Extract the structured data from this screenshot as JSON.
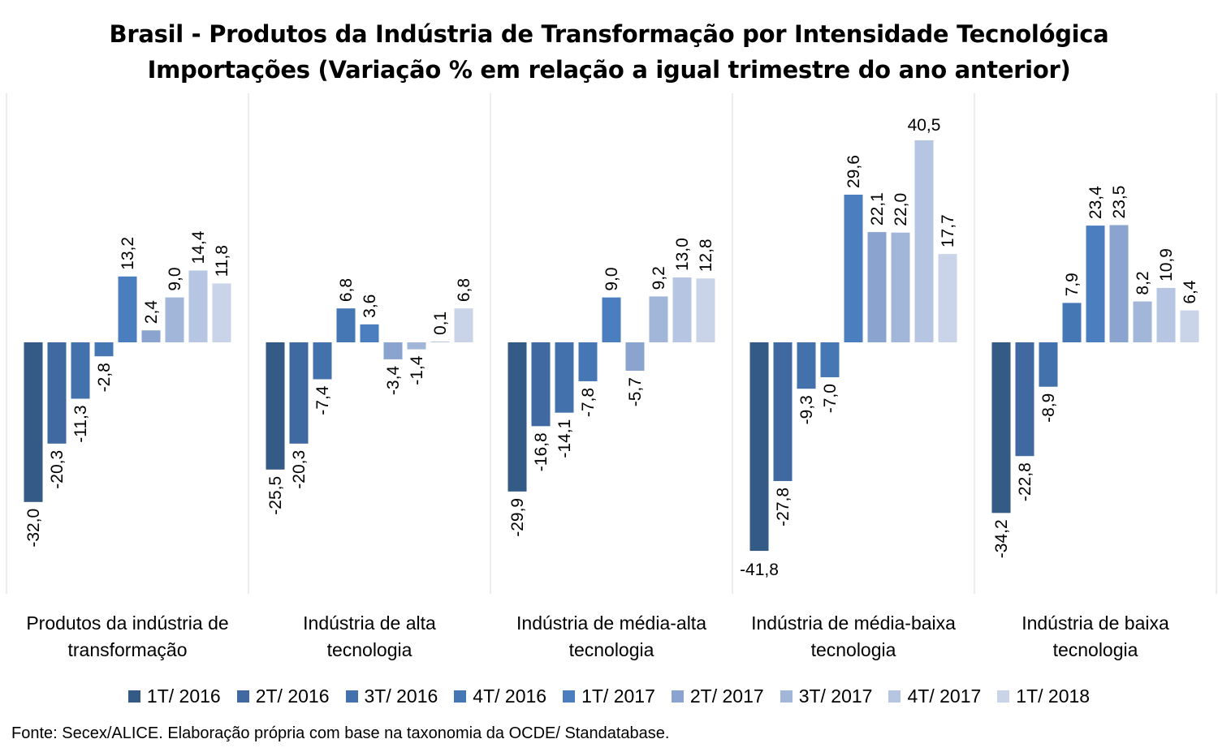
{
  "title_line1": "Brasil - Produtos da Indústria de Transformação por Intensidade Tecnológica",
  "title_line2": "Importações (Variação % em relação a igual trimestre do ano anterior)",
  "source": "Fonte: Secex/ALICE. Elaboração própria com base na taxonomia da OCDE/ Standatabase.",
  "chart_data": {
    "type": "bar",
    "categories": [
      [
        "Produtos da indústria de",
        "transformação"
      ],
      [
        "Indústria de alta",
        "tecnologia"
      ],
      [
        "Indústria de média-alta",
        "tecnologia"
      ],
      [
        "Indústria de média-baixa",
        "tecnologia"
      ],
      [
        "Indústria de baixa",
        "tecnologia"
      ]
    ],
    "series": [
      {
        "name": "1T/ 2016",
        "color": "#345a86",
        "values": [
          -32.0,
          -25.5,
          -29.9,
          -41.8,
          -34.2
        ]
      },
      {
        "name": "2T/ 2016",
        "color": "#3f69a0",
        "values": [
          -20.3,
          -20.3,
          -16.8,
          -27.8,
          -22.8
        ]
      },
      {
        "name": "3T/ 2016",
        "color": "#4371ac",
        "values": [
          -11.3,
          -7.4,
          -14.1,
          -9.3,
          -8.9
        ]
      },
      {
        "name": "4T/ 2016",
        "color": "#4677b5",
        "values": [
          -2.8,
          6.8,
          -7.8,
          -7.0,
          7.9
        ]
      },
      {
        "name": "1T/ 2017",
        "color": "#4a7ebf",
        "values": [
          13.2,
          3.6,
          9.0,
          29.6,
          23.4
        ]
      },
      {
        "name": "2T/ 2017",
        "color": "#8aa4cf",
        "values": [
          2.4,
          -3.4,
          -5.7,
          22.1,
          23.5
        ]
      },
      {
        "name": "3T/ 2017",
        "color": "#a2b6da",
        "values": [
          9.0,
          -1.4,
          9.2,
          22.0,
          8.2
        ]
      },
      {
        "name": "4T/ 2017",
        "color": "#b6c6e2",
        "values": [
          14.4,
          0.1,
          13.0,
          40.5,
          10.9
        ]
      },
      {
        "name": "1T/ 2018",
        "color": "#c9d4e9",
        "values": [
          11.8,
          6.8,
          12.8,
          17.7,
          6.4
        ]
      }
    ],
    "ylim": [
      -50,
      50
    ],
    "legend": "bottom",
    "grid": false,
    "data_labels": "decimal comma, rotated"
  }
}
